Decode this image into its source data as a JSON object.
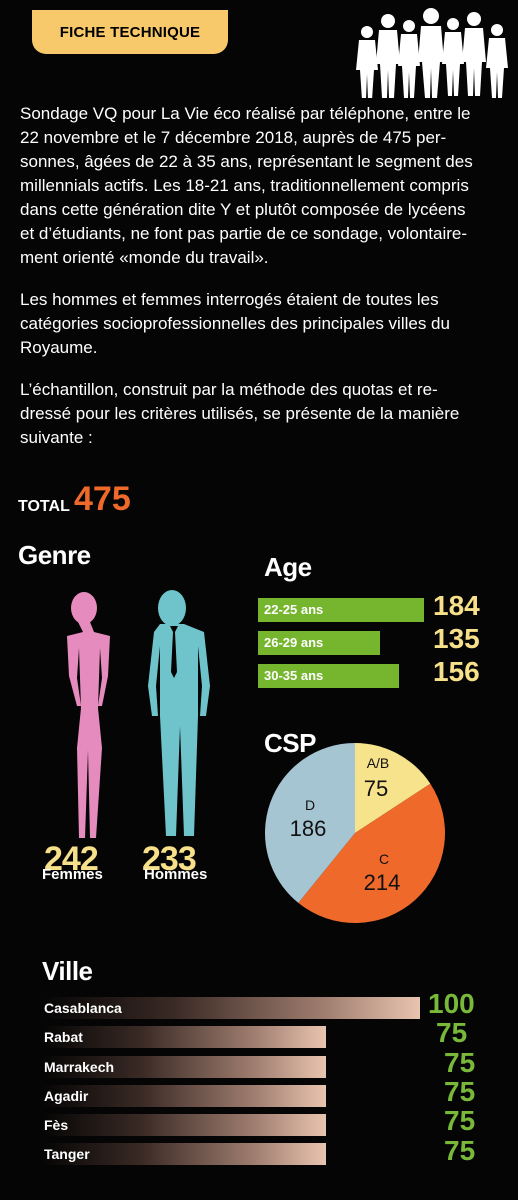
{
  "header": {
    "title": "FICHE TECHNIQUE"
  },
  "intro": {
    "p1": "Sondage VQ pour La Vie éco réalisé par téléphone, entre le\n22 novembre et le 7 décembre 2018, auprès de 475 per-\nsonnes, âgées de 22 à 35 ans, représentant le segment des\nmillennials actifs. Les 18-21 ans, traditionnellement compris\ndans cette génération dite Y et plutôt composée de lycéens\net d’étudiants, ne font pas partie de ce sondage, volontaire-\nment orienté «monde du travail».",
    "p2": "Les hommes et femmes interrogés étaient de  toutes les\ncatégories socioprofessionnelles des principales villes du\nRoyaume.",
    "p3": "L’échantillon, construit par la méthode des quotas et re-\ndressé pour les critères utilisés, se présente de la manière\nsuivante :"
  },
  "total": {
    "label": "TOTAL",
    "value": "475"
  },
  "colors": {
    "accent_orange": "#ef6a2a",
    "value_yellow": "#f7e08a",
    "age_green": "#76b52e",
    "ville_green": "#79b93a",
    "femme_pink": "#e58bbd",
    "homme_cyan": "#6fc3cb",
    "pie_ab": "#f7e38b",
    "pie_c": "#ef6a2a",
    "pie_d": "#a6c5d3"
  },
  "chart_data": [
    {
      "type": "bar",
      "title": "Genre",
      "categories": [
        "Femmes",
        "Hommes"
      ],
      "values": [
        242,
        233
      ]
    },
    {
      "type": "bar",
      "title": "Age",
      "categories": [
        "22-25 ans",
        "26-29 ans",
        "30-35 ans"
      ],
      "values": [
        184,
        135,
        156
      ]
    },
    {
      "type": "pie",
      "title": "CSP",
      "categories": [
        "A/B",
        "C",
        "D"
      ],
      "values": [
        75,
        214,
        186
      ]
    },
    {
      "type": "bar",
      "title": "Ville",
      "categories": [
        "Casablanca",
        "Rabat",
        "Marrakech",
        "Agadir",
        "Fès",
        "Tanger"
      ],
      "values": [
        100,
        75,
        75,
        75,
        75,
        75
      ]
    }
  ]
}
